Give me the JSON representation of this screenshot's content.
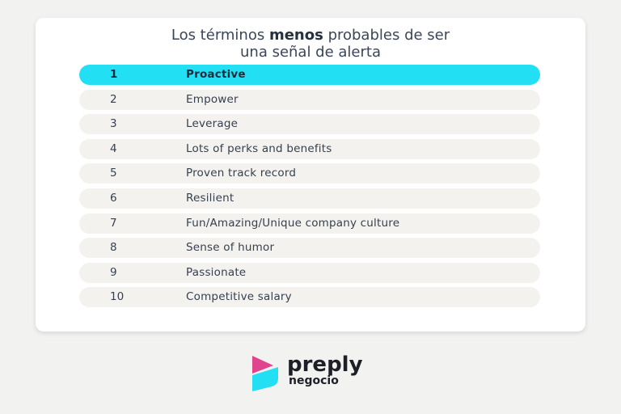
{
  "header": {
    "title": {
      "start": "Los términos",
      "bold": "menos",
      "end": "probables de ser",
      "line2": "una señal de alerta"
    }
  },
  "table": {
    "rows": [
      [
        "1",
        "Proactive"
      ],
      [
        "2",
        "Empower"
      ],
      [
        "3",
        "Leverage"
      ],
      [
        "4",
        "Lots of perks and benefits"
      ],
      [
        "5",
        "Proven track record"
      ],
      [
        "6",
        "Resilient"
      ],
      [
        "7",
        "Fun/Amazing/Unique company culture"
      ],
      [
        "8",
        "Sense of humor"
      ],
      [
        "9",
        "Passionate"
      ],
      [
        "10",
        "Competitive salary"
      ]
    ]
  },
  "logo": {
    "brand": "preply",
    "sub": "negocio"
  }
}
